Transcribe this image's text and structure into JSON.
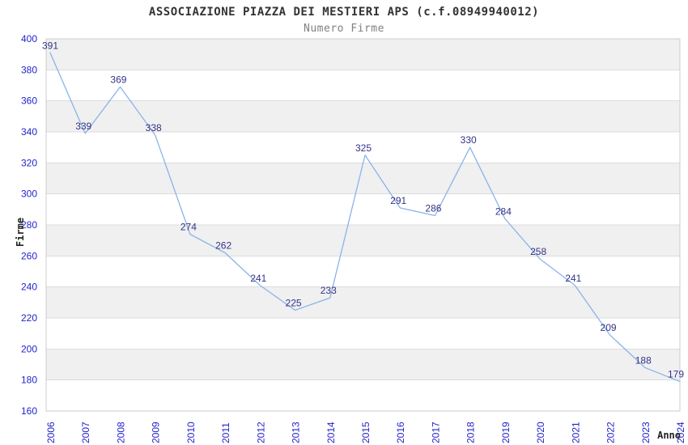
{
  "chart_data": {
    "type": "line",
    "title": "ASSOCIAZIONE PIAZZA DEI MESTIERI APS (c.f.08949940012)",
    "subtitle": "Numero Firme",
    "xlabel": "Anno",
    "ylabel": "Firme",
    "categories": [
      "2006",
      "2007",
      "2008",
      "2009",
      "2010",
      "2011",
      "2012",
      "2013",
      "2014",
      "2015",
      "2016",
      "2017",
      "2018",
      "2019",
      "2020",
      "2021",
      "2022",
      "2023",
      "2024"
    ],
    "values": [
      391,
      339,
      369,
      338,
      274,
      262,
      241,
      225,
      233,
      325,
      291,
      286,
      330,
      284,
      258,
      241,
      209,
      188,
      179
    ],
    "ylim": [
      160,
      400
    ],
    "ytick_step": 20,
    "legend": "none",
    "layout": {
      "grid": "horizontal",
      "alternating_bands": true,
      "x_tick_rotation": -90,
      "point_labels": true
    },
    "colors": {
      "line": "#8ab4e8",
      "point_label": "#333388",
      "tick_label": "#2222cc",
      "band": "#f0f0f0",
      "grid": "#dcdcdc",
      "border": "#cccccc",
      "title": "#333333",
      "subtitle": "#808080",
      "axis_title": "#222222"
    }
  }
}
